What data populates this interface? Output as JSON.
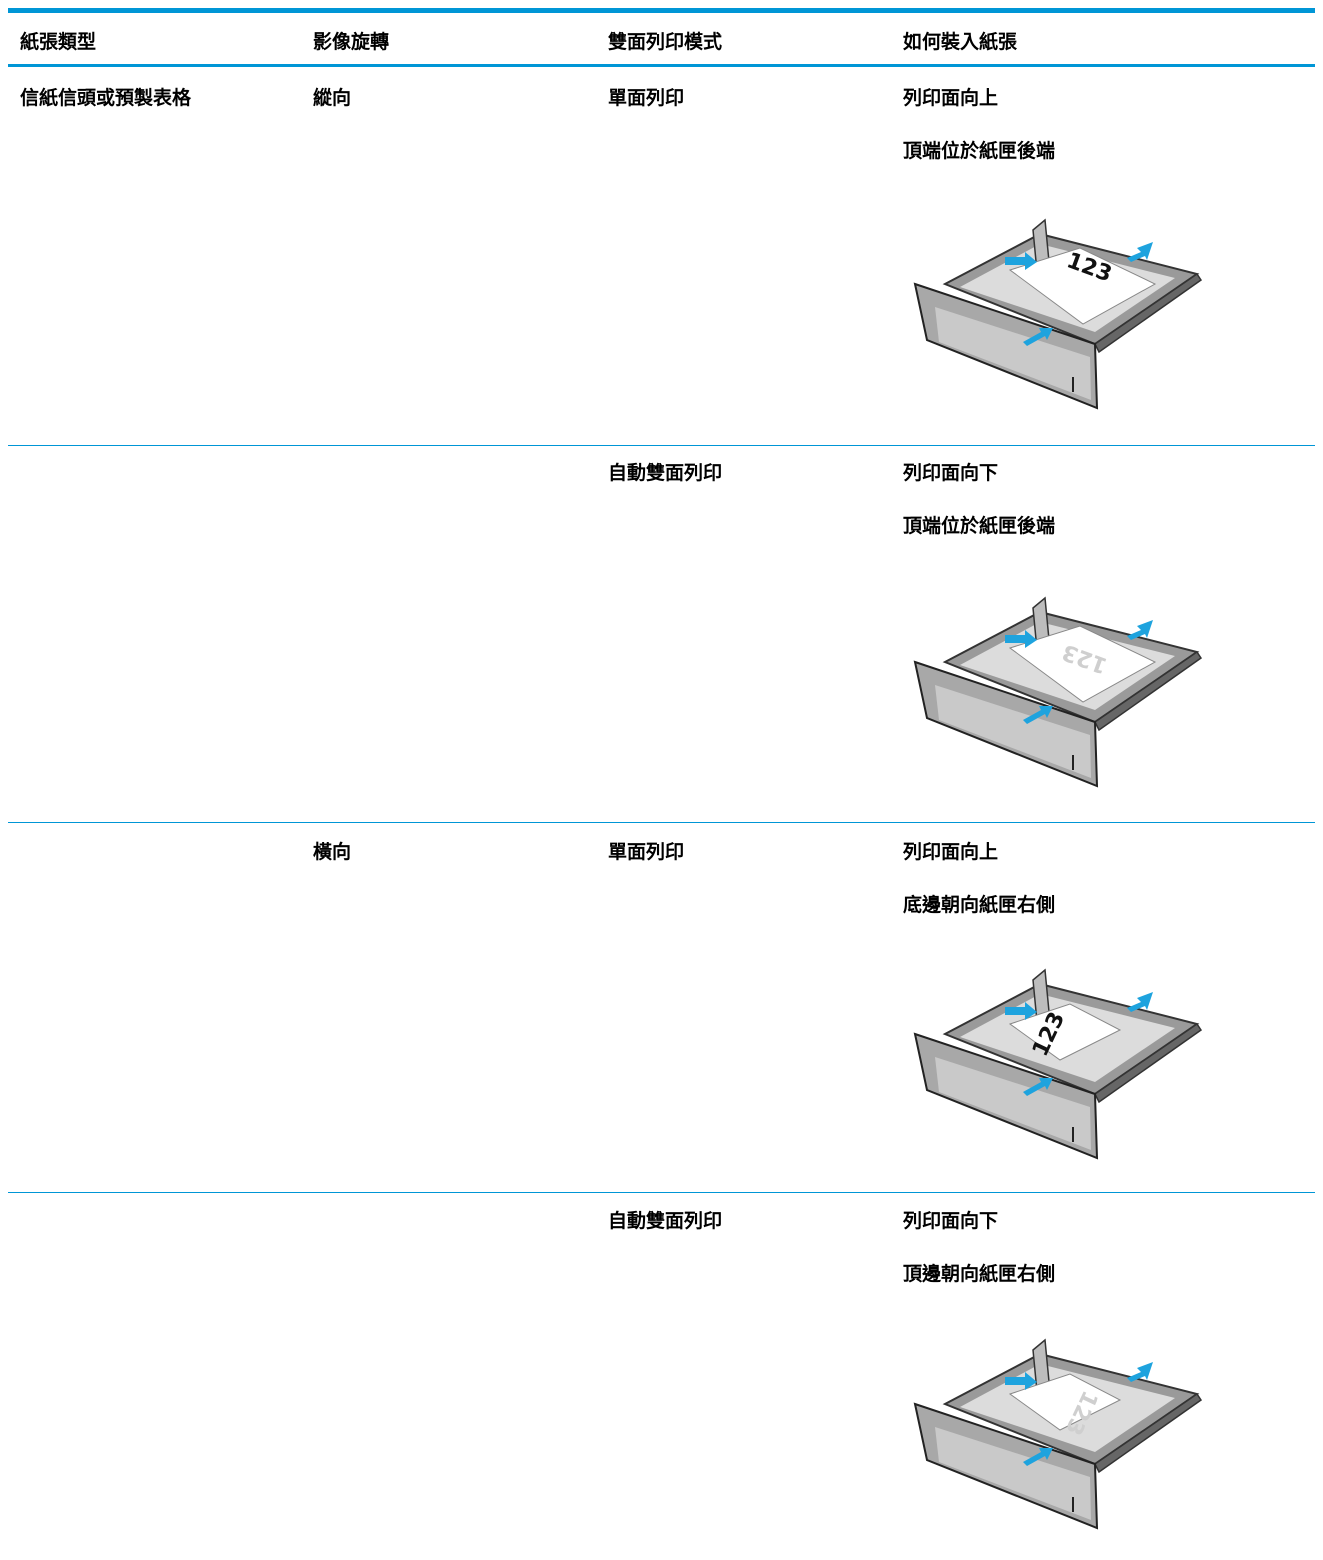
{
  "table": {
    "columns": [
      "紙張類型",
      "影像旋轉",
      "雙面列印模式",
      "如何裝入紙張"
    ],
    "rows": [
      {
        "paper_type": "信紙信頭或預製表格",
        "rotation": "縱向",
        "duplex_mode": "單面列印",
        "instructions": [
          "列印面向上",
          "頂端位於紙匣後端"
        ],
        "illustration_text": "123"
      },
      {
        "duplex_mode": "自動雙面列印",
        "instructions": [
          "列印面向下",
          "頂端位於紙匣後端"
        ],
        "illustration_text": "123"
      },
      {
        "rotation": "橫向",
        "duplex_mode": "單面列印",
        "instructions": [
          "列印面向上",
          "底邊朝向紙匣右側"
        ],
        "illustration_text": "123"
      },
      {
        "duplex_mode": "自動雙面列印",
        "instructions": [
          "列印面向下",
          "頂邊朝向紙匣右側"
        ],
        "illustration_text": "123"
      }
    ]
  }
}
